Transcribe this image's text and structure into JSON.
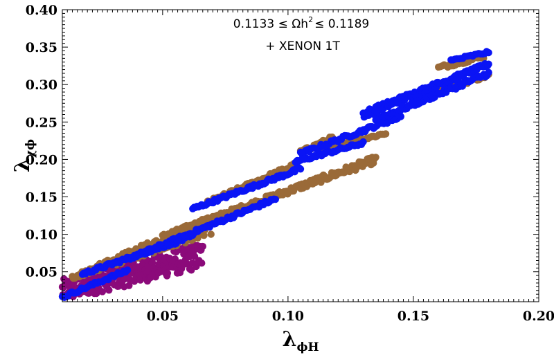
{
  "chart_data": {
    "type": "scatter",
    "title": "",
    "xlabel": {
      "main": "λ",
      "sub": "ϕH"
    },
    "ylabel": {
      "main": "λ",
      "sub": "χϕ"
    },
    "xlim": [
      0.01,
      0.2
    ],
    "ylim": [
      0.01,
      0.4
    ],
    "x_ticks": [
      {
        "value": 0.05,
        "label": "0.05"
      },
      {
        "value": 0.1,
        "label": "0.10"
      },
      {
        "value": 0.15,
        "label": "0.15"
      },
      {
        "value": 0.2,
        "label": "0.20"
      }
    ],
    "y_ticks": [
      {
        "value": 0.05,
        "label": "0.05"
      },
      {
        "value": 0.1,
        "label": "0.10"
      },
      {
        "value": 0.15,
        "label": "0.15"
      },
      {
        "value": 0.2,
        "label": "0.20"
      },
      {
        "value": 0.25,
        "label": "0.25"
      },
      {
        "value": 0.3,
        "label": "0.30"
      },
      {
        "value": 0.35,
        "label": "0.35"
      },
      {
        "value": 0.4,
        "label": "0.40"
      }
    ],
    "annotations": {
      "line1_pre": "0.1133 ≤ Ωh",
      "line1_sup": "2",
      "line1_post": "≤ 0.1189",
      "line2": "+ XENON 1T"
    },
    "grid": false,
    "legend": "none",
    "colors": {
      "purple": "#8b0a7a",
      "brown": "#9a6a38",
      "blue": "#0a14f5"
    },
    "series": [
      {
        "color": "purple",
        "bands": [
          {
            "x0": 0.01,
            "x1": 0.066,
            "y_lo0": 0.01,
            "y_lo1": 0.055,
            "y_hi0": 0.04,
            "y_hi1": 0.09,
            "density": 260
          }
        ]
      },
      {
        "color": "brown",
        "bands": [
          {
            "x0": 0.014,
            "x1": 0.07,
            "y_lo0": 0.04,
            "y_lo1": 0.1,
            "y_hi0": 0.045,
            "y_hi1": 0.127,
            "density": 160
          },
          {
            "x0": 0.05,
            "x1": 0.135,
            "y_lo0": 0.095,
            "y_lo1": 0.195,
            "y_hi0": 0.1,
            "y_hi1": 0.205,
            "density": 180
          },
          {
            "x0": 0.068,
            "x1": 0.103,
            "y_lo0": 0.14,
            "y_lo1": 0.19,
            "y_hi0": 0.145,
            "y_hi1": 0.196,
            "density": 60
          },
          {
            "x0": 0.105,
            "x1": 0.118,
            "y_lo0": 0.208,
            "y_lo1": 0.225,
            "y_hi0": 0.212,
            "y_hi1": 0.232,
            "density": 30
          },
          {
            "x0": 0.112,
            "x1": 0.139,
            "y_lo0": 0.21,
            "y_lo1": 0.233,
            "y_hi0": 0.214,
            "y_hi1": 0.237,
            "density": 40
          },
          {
            "x0": 0.15,
            "x1": 0.18,
            "y_lo0": 0.28,
            "y_lo1": 0.31,
            "y_hi0": 0.284,
            "y_hi1": 0.315,
            "density": 40
          },
          {
            "x0": 0.16,
            "x1": 0.178,
            "y_lo0": 0.32,
            "y_lo1": 0.335,
            "y_hi0": 0.325,
            "y_hi1": 0.34,
            "density": 25
          }
        ]
      },
      {
        "color": "blue",
        "bands": [
          {
            "x0": 0.01,
            "x1": 0.036,
            "y_lo0": 0.014,
            "y_lo1": 0.05,
            "y_hi0": 0.018,
            "y_hi1": 0.054,
            "density": 35
          },
          {
            "x0": 0.018,
            "x1": 0.062,
            "y_lo0": 0.045,
            "y_lo1": 0.095,
            "y_hi0": 0.049,
            "y_hi1": 0.1,
            "density": 75
          },
          {
            "x0": 0.036,
            "x1": 0.095,
            "y_lo0": 0.065,
            "y_lo1": 0.145,
            "y_hi0": 0.069,
            "y_hi1": 0.15,
            "density": 100
          },
          {
            "x0": 0.062,
            "x1": 0.105,
            "y_lo0": 0.132,
            "y_lo1": 0.185,
            "y_hi0": 0.136,
            "y_hi1": 0.19,
            "density": 75
          },
          {
            "x0": 0.103,
            "x1": 0.13,
            "y_lo0": 0.195,
            "y_lo1": 0.22,
            "y_hi0": 0.199,
            "y_hi1": 0.224,
            "density": 40
          },
          {
            "x0": 0.105,
            "x1": 0.145,
            "y_lo0": 0.205,
            "y_lo1": 0.255,
            "y_hi0": 0.21,
            "y_hi1": 0.26,
            "density": 60
          },
          {
            "x0": 0.13,
            "x1": 0.18,
            "y_lo0": 0.255,
            "y_lo1": 0.325,
            "y_hi0": 0.265,
            "y_hi1": 0.33,
            "density": 140
          },
          {
            "x0": 0.135,
            "x1": 0.18,
            "y_lo0": 0.25,
            "y_lo1": 0.312,
            "y_hi0": 0.256,
            "y_hi1": 0.318,
            "density": 70
          },
          {
            "x0": 0.165,
            "x1": 0.18,
            "y_lo0": 0.33,
            "y_lo1": 0.342,
            "y_hi0": 0.334,
            "y_hi1": 0.345,
            "density": 20
          }
        ]
      }
    ]
  }
}
